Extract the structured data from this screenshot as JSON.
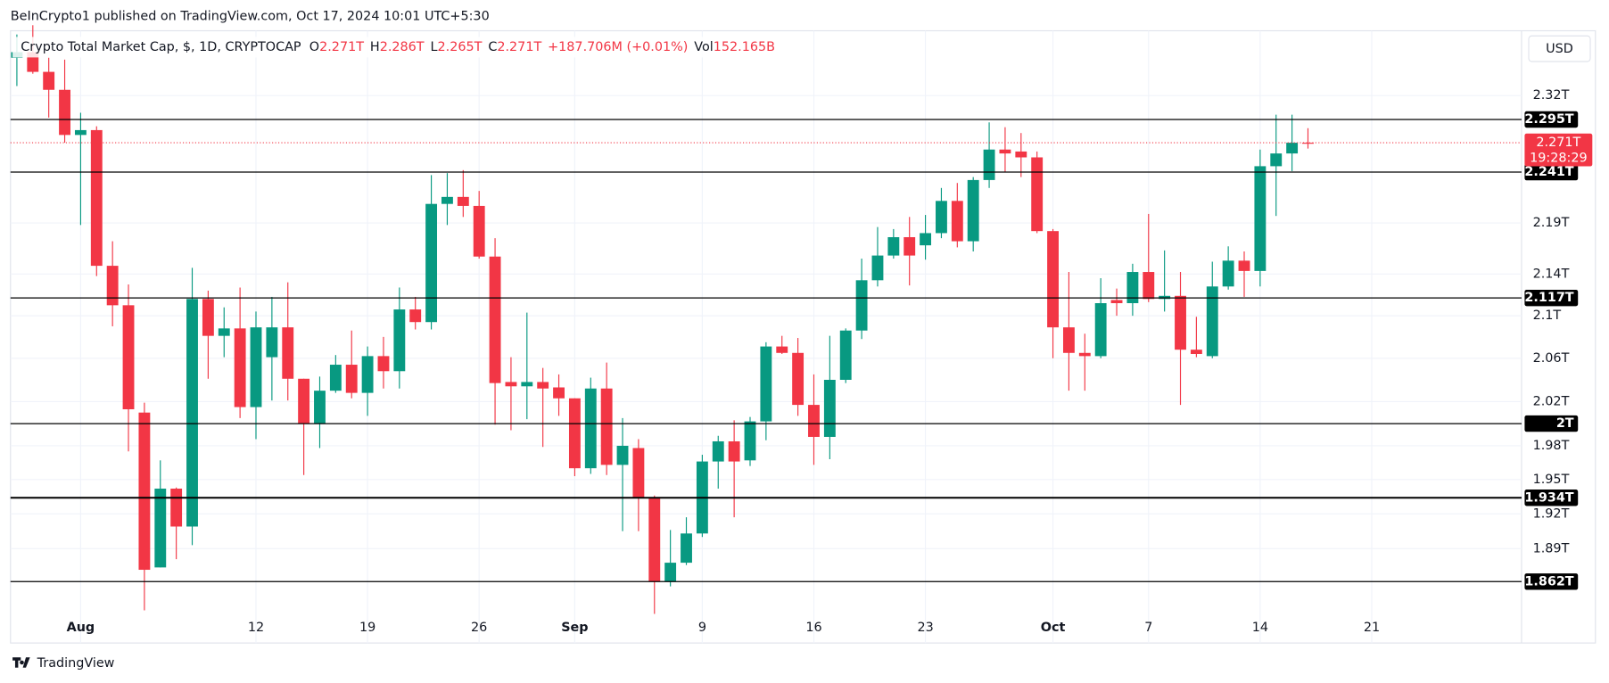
{
  "header": {
    "byline": "BeInCrypto1 published on TradingView.com, Oct 17, 2024 10:01 UTC+5:30",
    "footer": "TradingView",
    "currency": "USD"
  },
  "chart_data": {
    "type": "candlestick",
    "title": "Crypto Total Market Cap, $, 1D, CRYPTOCAP",
    "legend_values": [
      {
        "label": "O",
        "value": "2.271T"
      },
      {
        "label": "H",
        "value": "2.286T"
      },
      {
        "label": "L",
        "value": "2.265T"
      },
      {
        "label": "C",
        "value": "2.271T"
      }
    ],
    "change": "+187.706M (+0.01%)",
    "volume": {
      "label": "Vol",
      "value": "152.165B"
    },
    "up_color": "#089981",
    "down_color": "#f23645",
    "log_scale": true,
    "open": [
      2.36,
      2.366,
      2.345,
      2.326,
      2.279,
      2.284,
      2.148,
      2.11,
      2.01,
      1.874,
      1.942,
      1.909,
      2.116,
      2.081,
      2.088,
      2.015,
      2.061,
      2.089,
      2.041,
      2.0,
      2.03,
      2.054,
      2.028,
      2.062,
      2.048,
      2.106,
      2.094,
      2.209,
      2.216,
      2.207,
      2.157,
      2.038,
      2.034,
      2.038,
      2.033,
      2.023,
      1.96,
      2.032,
      1.963,
      1.978,
      1.934,
      1.862,
      1.878,
      1.903,
      1.966,
      1.984,
      1.967,
      2.002,
      2.071,
      2.065,
      2.017,
      1.988,
      2.04,
      2.086,
      2.134,
      2.158,
      2.176,
      2.168,
      2.18,
      2.212,
      2.172,
      2.233,
      2.264,
      2.262,
      2.256,
      2.182,
      2.089,
      2.065,
      2.062,
      2.115,
      2.112,
      2.142,
      2.116,
      2.119,
      2.068,
      2.062,
      2.128,
      2.153,
      2.143,
      2.247,
      2.26,
      2.271
    ],
    "high": [
      2.385,
      2.395,
      2.36,
      2.358,
      2.302,
      2.288,
      2.172,
      2.13,
      2.019,
      1.967,
      1.943,
      2.146,
      2.124,
      2.108,
      2.127,
      2.104,
      2.118,
      2.132,
      2.041,
      2.043,
      2.063,
      2.086,
      2.071,
      2.08,
      2.127,
      2.118,
      2.238,
      2.24,
      2.243,
      2.222,
      2.175,
      2.061,
      2.103,
      2.051,
      2.045,
      2.023,
      2.042,
      2.056,
      2.005,
      1.986,
      1.936,
      1.906,
      1.917,
      1.972,
      1.989,
      2.003,
      2.006,
      2.075,
      2.081,
      2.079,
      2.045,
      2.081,
      2.088,
      2.155,
      2.186,
      2.184,
      2.196,
      2.198,
      2.225,
      2.23,
      2.236,
      2.292,
      2.287,
      2.281,
      2.262,
      2.184,
      2.142,
      2.083,
      2.136,
      2.126,
      2.15,
      2.199,
      2.163,
      2.142,
      2.099,
      2.152,
      2.167,
      2.162,
      2.264,
      2.3,
      2.3,
      2.286
    ],
    "low": [
      2.33,
      2.343,
      2.297,
      2.271,
      2.188,
      2.138,
      2.09,
      1.975,
      1.838,
      1.874,
      1.881,
      1.893,
      2.041,
      2.061,
      2.005,
      1.986,
      2.021,
      2.021,
      1.954,
      1.978,
      2.028,
      2.023,
      2.007,
      2.032,
      2.032,
      2.087,
      2.087,
      2.188,
      2.196,
      2.155,
      1.999,
      1.994,
      2.004,
      1.979,
      2.007,
      1.953,
      1.955,
      1.954,
      1.905,
      1.905,
      1.835,
      1.858,
      1.876,
      1.9,
      1.942,
      1.917,
      1.962,
      1.985,
      2.064,
      2.007,
      1.963,
      1.968,
      2.037,
      2.078,
      2.128,
      2.155,
      2.129,
      2.154,
      2.175,
      2.166,
      2.162,
      2.225,
      2.241,
      2.236,
      2.18,
      2.06,
      2.03,
      2.03,
      2.06,
      2.1,
      2.1,
      2.113,
      2.104,
      2.017,
      2.061,
      2.06,
      2.125,
      2.118,
      2.128,
      2.197,
      2.242,
      2.265
    ],
    "close": [
      2.366,
      2.345,
      2.326,
      2.279,
      2.284,
      2.148,
      2.11,
      2.013,
      1.872,
      1.942,
      1.909,
      2.116,
      2.081,
      2.088,
      2.015,
      2.089,
      2.089,
      2.041,
      2.0,
      2.03,
      2.054,
      2.028,
      2.062,
      2.048,
      2.106,
      2.094,
      2.209,
      2.216,
      2.207,
      2.157,
      2.037,
      2.034,
      2.038,
      2.032,
      2.023,
      1.96,
      2.032,
      1.963,
      1.98,
      1.934,
      1.862,
      1.878,
      1.903,
      1.966,
      1.984,
      1.966,
      2.002,
      2.071,
      2.065,
      2.017,
      1.988,
      2.04,
      2.086,
      2.134,
      2.158,
      2.176,
      2.158,
      2.18,
      2.212,
      2.172,
      2.233,
      2.264,
      2.26,
      2.256,
      2.182,
      2.089,
      2.065,
      2.062,
      2.112,
      2.112,
      2.142,
      2.116,
      2.119,
      2.068,
      2.064,
      2.128,
      2.153,
      2.143,
      2.247,
      2.26,
      2.271,
      2.271
    ],
    "xlim": [
      -0.4,
      94.4
    ],
    "xticks": [
      {
        "value": 4,
        "label": "Aug"
      },
      {
        "value": 15,
        "label": "12"
      },
      {
        "value": 22,
        "label": "19"
      },
      {
        "value": 29,
        "label": "26"
      },
      {
        "value": 35,
        "label": "Sep"
      },
      {
        "value": 43,
        "label": "9"
      },
      {
        "value": 50,
        "label": "16"
      },
      {
        "value": 57,
        "label": "23"
      },
      {
        "value": 65,
        "label": "Oct"
      },
      {
        "value": 71,
        "label": "7"
      },
      {
        "value": 78,
        "label": "14"
      },
      {
        "value": 85,
        "label": "21"
      }
    ],
    "ylim": [
      1.811,
      2.389
    ],
    "yticks": [
      {
        "value": 2.32,
        "label": "2.32T"
      },
      {
        "value": 2.19,
        "label": "2.19T"
      },
      {
        "value": 2.14,
        "label": "2.14T"
      },
      {
        "value": 2.1,
        "label": "2.1T"
      },
      {
        "value": 2.06,
        "label": "2.06T"
      },
      {
        "value": 2.02,
        "label": "2.02T"
      },
      {
        "value": 1.98,
        "label": "1.98T"
      },
      {
        "value": 1.95,
        "label": "1.95T"
      },
      {
        "value": 1.92,
        "label": "1.92T"
      },
      {
        "value": 1.89,
        "label": "1.89T"
      }
    ],
    "levels": [
      {
        "value": 2.295,
        "label": "2.295T"
      },
      {
        "value": 2.241,
        "label": "2.241T"
      },
      {
        "value": 2.117,
        "label": "2.117T"
      },
      {
        "value": 2,
        "label": "2T"
      },
      {
        "value": 1.934,
        "label": "1.934T"
      },
      {
        "value": 1.862,
        "label": "1.862T"
      }
    ],
    "last_price": {
      "value": 2.271,
      "label": "2.271T",
      "countdown": "19:28:29",
      "color": "#f23645"
    },
    "grid": true
  }
}
